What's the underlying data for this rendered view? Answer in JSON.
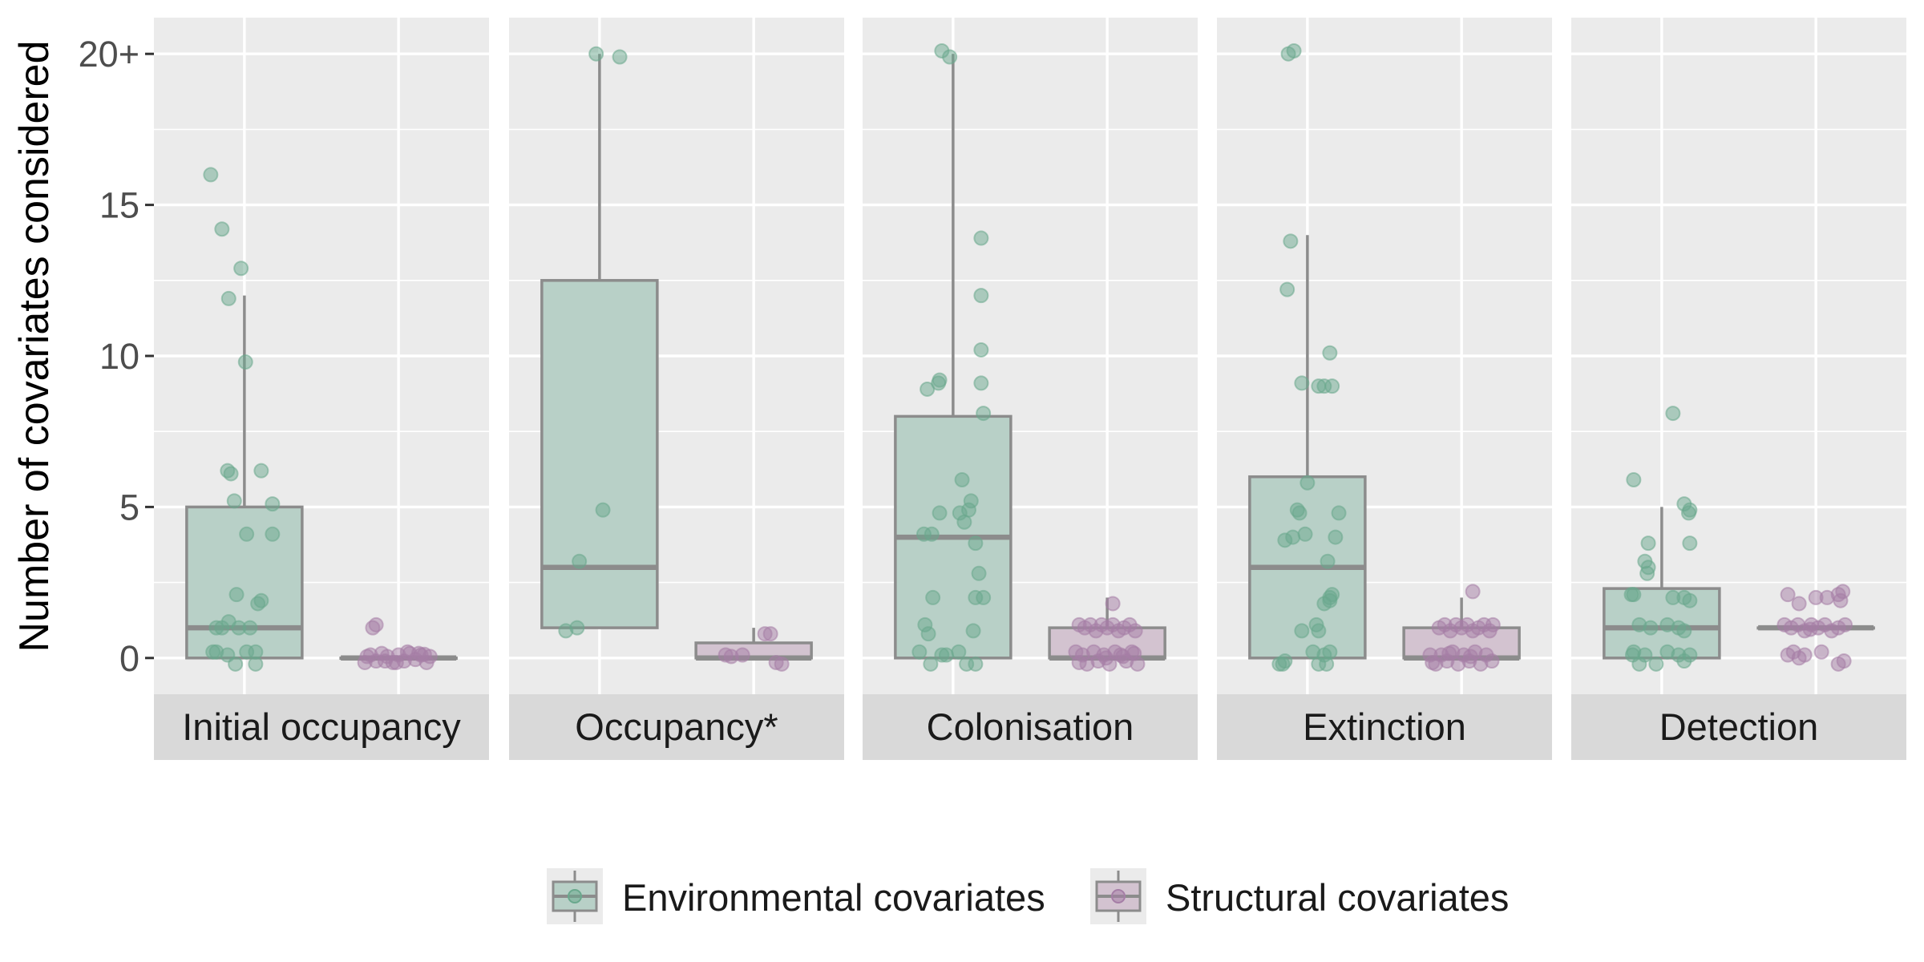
{
  "chart_data": {
    "type": "box",
    "ylabel": "Number of covariates considered",
    "y_ticks": [
      {
        "value": 0,
        "label": "0"
      },
      {
        "value": 5,
        "label": "5"
      },
      {
        "value": 10,
        "label": "10"
      },
      {
        "value": 15,
        "label": "15"
      },
      {
        "value": 20,
        "label": "20+"
      }
    ],
    "ylim": [
      -1.2,
      21.2
    ],
    "grid": true,
    "legend_position": "bottom",
    "colors": {
      "environmental_fill": "#b8d0c7",
      "environmental_point": "#6aa88d",
      "structural_fill": "#d3c3d0",
      "structural_point": "#a57ea6",
      "box_stroke": "#8c8c8c",
      "panel_bg": "#ebebeb",
      "strip_bg": "#d9d9d9",
      "grid_major": "#ffffff"
    },
    "series": [
      {
        "key": "environmental",
        "name": "Environmental covariates"
      },
      {
        "key": "structural",
        "name": "Structural covariates"
      }
    ],
    "panels": [
      {
        "label": "Initial occupancy",
        "environmental": {
          "box": {
            "lower_whisker": 0,
            "q1": 0,
            "median": 1,
            "q3": 5,
            "upper_whisker": 12
          },
          "points": [
            [
              -0.3,
              16
            ],
            [
              -0.2,
              14.2
            ],
            [
              -0.03,
              12.9
            ],
            [
              -0.14,
              11.9
            ],
            [
              0.01,
              9.8
            ],
            [
              -0.15,
              6.2
            ],
            [
              -0.12,
              6.1
            ],
            [
              0.15,
              6.2
            ],
            [
              -0.09,
              5.2
            ],
            [
              0.25,
              5.1
            ],
            [
              0.02,
              4.1
            ],
            [
              0.25,
              4.1
            ],
            [
              -0.07,
              2.1
            ],
            [
              0.15,
              1.9
            ],
            [
              0.12,
              1.8
            ],
            [
              -0.25,
              1.0
            ],
            [
              -0.2,
              1.0
            ],
            [
              -0.14,
              1.2
            ],
            [
              -0.05,
              1.0
            ],
            [
              0.05,
              1.0
            ],
            [
              -0.25,
              0.2
            ],
            [
              -0.15,
              0.1
            ],
            [
              -0.08,
              -0.2
            ],
            [
              0.02,
              0.2
            ],
            [
              0.1,
              0.2
            ],
            [
              0.1,
              -0.2
            ],
            [
              -0.28,
              0.2
            ]
          ]
        },
        "structural": {
          "box": {
            "lower_whisker": 0,
            "q1": 0,
            "median": 0,
            "q3": 0,
            "upper_whisker": 0
          },
          "points": [
            [
              -0.2,
              1.1
            ],
            [
              -0.23,
              1.0
            ],
            [
              -0.3,
              -0.15
            ],
            [
              -0.25,
              0.1
            ],
            [
              -0.2,
              -0.1
            ],
            [
              -0.15,
              0.15
            ],
            [
              -0.1,
              0.05
            ],
            [
              -0.05,
              -0.15
            ],
            [
              0,
              0.1
            ],
            [
              0.05,
              -0.1
            ],
            [
              0.1,
              0.15
            ],
            [
              0.15,
              -0.05
            ],
            [
              0.2,
              0.1
            ],
            [
              0.25,
              -0.15
            ],
            [
              0.28,
              0.05
            ],
            [
              -0.12,
              -0.1
            ],
            [
              0.08,
              0.2
            ],
            [
              -0.02,
              -0.15
            ],
            [
              0.18,
              0.15
            ],
            [
              -0.28,
              0.05
            ],
            [
              0.23,
              0.12
            ]
          ]
        }
      },
      {
        "label": "Occupancy*",
        "environmental": {
          "box": {
            "lower_whisker": 1,
            "q1": 1,
            "median": 3,
            "q3": 12.5,
            "upper_whisker": 20
          },
          "points": [
            [
              -0.03,
              20
            ],
            [
              0.18,
              19.9
            ],
            [
              0.03,
              4.9
            ],
            [
              -0.18,
              3.2
            ],
            [
              -0.3,
              0.9
            ],
            [
              -0.2,
              1.0
            ]
          ]
        },
        "structural": {
          "box": {
            "lower_whisker": 0,
            "q1": 0,
            "median": 0,
            "q3": 0.5,
            "upper_whisker": 1
          },
          "points": [
            [
              0.1,
              0.8
            ],
            [
              0.15,
              0.8
            ],
            [
              -0.1,
              0.1
            ],
            [
              -0.2,
              0.05
            ],
            [
              0.2,
              -0.15
            ],
            [
              0.25,
              -0.2
            ],
            [
              -0.25,
              0.1
            ]
          ]
        }
      },
      {
        "label": "Colonisation",
        "environmental": {
          "box": {
            "lower_whisker": 0,
            "q1": 0,
            "median": 4,
            "q3": 8,
            "upper_whisker": 20
          },
          "points": [
            [
              -0.1,
              20.1
            ],
            [
              -0.03,
              19.9
            ],
            [
              0.25,
              13.9
            ],
            [
              0.25,
              12.0
            ],
            [
              0.25,
              10.2
            ],
            [
              0.25,
              9.1
            ],
            [
              -0.12,
              9.2
            ],
            [
              -0.13,
              9.1
            ],
            [
              -0.23,
              8.9
            ],
            [
              0.27,
              8.1
            ],
            [
              0.08,
              5.9
            ],
            [
              0.16,
              5.2
            ],
            [
              0.14,
              4.9
            ],
            [
              0.06,
              4.8
            ],
            [
              -0.12,
              4.8
            ],
            [
              0.1,
              4.5
            ],
            [
              -0.26,
              4.1
            ],
            [
              -0.19,
              4.1
            ],
            [
              0.2,
              3.8
            ],
            [
              0.23,
              2.8
            ],
            [
              -0.18,
              2.0
            ],
            [
              0.2,
              2.0
            ],
            [
              0.27,
              2.0
            ],
            [
              -0.25,
              1.1
            ],
            [
              -0.22,
              0.8
            ],
            [
              0.18,
              0.9
            ],
            [
              -0.3,
              0.2
            ],
            [
              -0.2,
              -0.2
            ],
            [
              -0.1,
              0.1
            ],
            [
              0.05,
              0.2
            ],
            [
              0.12,
              -0.2
            ],
            [
              0.2,
              -0.2
            ],
            [
              -0.06,
              0.1
            ]
          ]
        },
        "structural": {
          "box": {
            "lower_whisker": 0,
            "q1": 0,
            "median": 0,
            "q3": 1,
            "upper_whisker": 2
          },
          "points": [
            [
              0.05,
              1.8
            ],
            [
              -0.25,
              1.1
            ],
            [
              -0.2,
              1.0
            ],
            [
              -0.15,
              1.1
            ],
            [
              -0.1,
              0.9
            ],
            [
              -0.05,
              1.1
            ],
            [
              0,
              1.0
            ],
            [
              0.05,
              1.1
            ],
            [
              0.1,
              0.9
            ],
            [
              0.15,
              1.0
            ],
            [
              0.2,
              1.1
            ],
            [
              0.25,
              0.9
            ],
            [
              -0.28,
              0.2
            ],
            [
              -0.22,
              0.1
            ],
            [
              -0.18,
              -0.2
            ],
            [
              -0.12,
              0.2
            ],
            [
              -0.08,
              -0.1
            ],
            [
              -0.03,
              0.1
            ],
            [
              0.02,
              -0.2
            ],
            [
              0.07,
              0.2
            ],
            [
              0.12,
              0.1
            ],
            [
              0.17,
              -0.1
            ],
            [
              0.22,
              0.2
            ],
            [
              0.27,
              -0.2
            ],
            [
              -0.25,
              -0.15
            ],
            [
              0.24,
              0.15
            ],
            [
              -0.01,
              0.0
            ],
            [
              0.14,
              0.05
            ]
          ]
        }
      },
      {
        "label": "Extinction",
        "environmental": {
          "box": {
            "lower_whisker": 0,
            "q1": 0,
            "median": 3,
            "q3": 6,
            "upper_whisker": 14
          },
          "points": [
            [
              -0.17,
              20.0
            ],
            [
              -0.12,
              20.1
            ],
            [
              -0.15,
              13.8
            ],
            [
              -0.18,
              12.2
            ],
            [
              0.2,
              10.1
            ],
            [
              -0.05,
              9.1
            ],
            [
              0.15,
              9.0
            ],
            [
              0.1,
              9.0
            ],
            [
              0.22,
              9.0
            ],
            [
              0,
              5.8
            ],
            [
              -0.07,
              4.8
            ],
            [
              -0.09,
              4.9
            ],
            [
              0.28,
              4.8
            ],
            [
              -0.13,
              4.0
            ],
            [
              -0.2,
              3.9
            ],
            [
              -0.02,
              4.1
            ],
            [
              0.25,
              4.0
            ],
            [
              0.18,
              3.2
            ],
            [
              0.22,
              2.1
            ],
            [
              0.2,
              2.0
            ],
            [
              0.15,
              1.8
            ],
            [
              0.2,
              1.9
            ],
            [
              0.08,
              1.1
            ],
            [
              0.1,
              0.9
            ],
            [
              -0.05,
              0.9
            ],
            [
              -0.25,
              -0.2
            ],
            [
              -0.2,
              -0.1
            ],
            [
              0.05,
              0.2
            ],
            [
              0.1,
              -0.2
            ],
            [
              0.15,
              0.1
            ],
            [
              0.2,
              0.2
            ],
            [
              0.17,
              -0.2
            ],
            [
              -0.22,
              -0.2
            ]
          ]
        },
        "structural": {
          "box": {
            "lower_whisker": 0,
            "q1": 0,
            "median": 0,
            "q3": 1,
            "upper_whisker": 2
          },
          "points": [
            [
              0.1,
              2.2
            ],
            [
              -0.2,
              1.0
            ],
            [
              -0.15,
              1.1
            ],
            [
              -0.1,
              0.9
            ],
            [
              -0.05,
              1.1
            ],
            [
              0,
              1.0
            ],
            [
              0.05,
              1.1
            ],
            [
              0.1,
              0.9
            ],
            [
              0.15,
              1.0
            ],
            [
              0.2,
              1.1
            ],
            [
              0.25,
              0.9
            ],
            [
              0.28,
              1.1
            ],
            [
              -0.28,
              0.1
            ],
            [
              -0.23,
              -0.2
            ],
            [
              -0.18,
              0.1
            ],
            [
              -0.13,
              -0.1
            ],
            [
              -0.08,
              0.2
            ],
            [
              -0.03,
              -0.2
            ],
            [
              0.02,
              0.1
            ],
            [
              0.07,
              -0.1
            ],
            [
              0.12,
              0.2
            ],
            [
              0.17,
              -0.2
            ],
            [
              0.22,
              0.1
            ],
            [
              0.27,
              -0.1
            ],
            [
              -0.26,
              -0.15
            ],
            [
              0.08,
              0.05
            ],
            [
              -0.11,
              0.15
            ]
          ]
        }
      },
      {
        "label": "Detection",
        "environmental": {
          "box": {
            "lower_whisker": 0,
            "q1": 0,
            "median": 1,
            "q3": 2.3,
            "upper_whisker": 5
          },
          "points": [
            [
              0.1,
              8.1
            ],
            [
              -0.25,
              5.9
            ],
            [
              0.2,
              5.1
            ],
            [
              0.25,
              4.9
            ],
            [
              0.24,
              4.8
            ],
            [
              -0.12,
              3.8
            ],
            [
              0.25,
              3.8
            ],
            [
              -0.15,
              3.2
            ],
            [
              -0.12,
              3.0
            ],
            [
              -0.13,
              2.8
            ],
            [
              -0.25,
              2.1
            ],
            [
              -0.27,
              2.1
            ],
            [
              0.1,
              2.0
            ],
            [
              0.2,
              2.0
            ],
            [
              0.25,
              1.9
            ],
            [
              -0.2,
              1.1
            ],
            [
              -0.1,
              1.0
            ],
            [
              0.05,
              1.1
            ],
            [
              0.15,
              1.0
            ],
            [
              0.2,
              0.9
            ],
            [
              -0.25,
              0.2
            ],
            [
              -0.2,
              -0.2
            ],
            [
              -0.15,
              0.1
            ],
            [
              -0.05,
              -0.2
            ],
            [
              0.05,
              0.2
            ],
            [
              0.15,
              0.1
            ],
            [
              0.2,
              -0.1
            ],
            [
              0.25,
              0.1
            ],
            [
              -0.26,
              0.1
            ]
          ]
        },
        "structural": {
          "box": {
            "lower_whisker": 1,
            "q1": 1,
            "median": 1,
            "q3": 1,
            "upper_whisker": 1
          },
          "points": [
            [
              -0.25,
              2.1
            ],
            [
              -0.15,
              1.8
            ],
            [
              0,
              2.0
            ],
            [
              0.1,
              2.0
            ],
            [
              0.2,
              2.1
            ],
            [
              0.22,
              1.9
            ],
            [
              0.24,
              2.2
            ],
            [
              -0.28,
              1.1
            ],
            [
              -0.22,
              1.0
            ],
            [
              -0.16,
              1.1
            ],
            [
              -0.1,
              0.9
            ],
            [
              -0.04,
              1.1
            ],
            [
              0.02,
              1.0
            ],
            [
              0.08,
              1.1
            ],
            [
              0.14,
              0.9
            ],
            [
              0.2,
              1.0
            ],
            [
              0.26,
              1.1
            ],
            [
              -0.25,
              0.1
            ],
            [
              -0.2,
              0.2
            ],
            [
              -0.15,
              0.0
            ],
            [
              -0.1,
              0.1
            ],
            [
              0.05,
              0.2
            ],
            [
              0.2,
              -0.2
            ],
            [
              0.25,
              -0.1
            ],
            [
              -0.05,
              0.95
            ]
          ]
        }
      }
    ]
  }
}
